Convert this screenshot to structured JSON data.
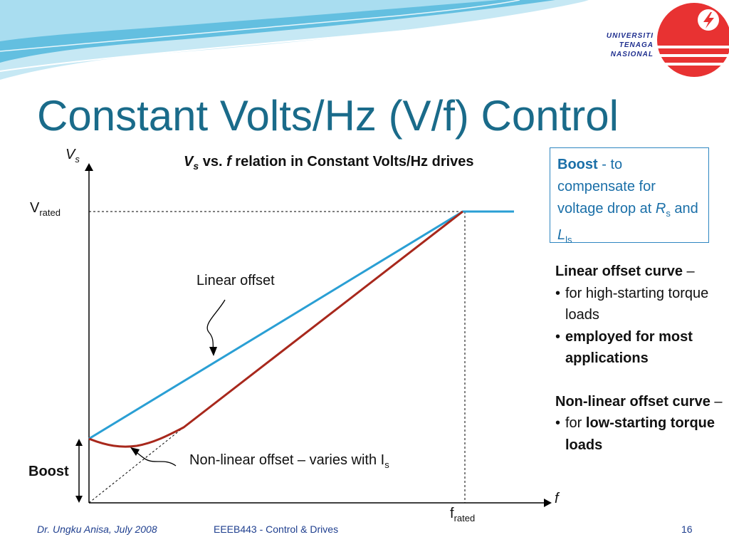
{
  "logo": {
    "lines": [
      "UNIVERSITI",
      "TENAGA",
      "NASIONAL"
    ],
    "icon": "lightning-bolt-icon",
    "circle_color": "#e83232"
  },
  "title": "Constant Volts/Hz (V/f) Control",
  "diagram": {
    "heading": {
      "var_v": "V",
      "var_v_sub": "s",
      "vs": " vs. ",
      "var_f": "f",
      "rest": " relation in Constant Volts/Hz drives"
    },
    "y_axis_label": "V",
    "y_axis_label_sub": "s",
    "x_axis_label": "f",
    "v_rated": "V",
    "v_rated_sub": "rated",
    "f_rated": "f",
    "f_rated_sub": "rated",
    "boost_label": "Boost",
    "linear_label": "Linear offset",
    "nonlinear_label": "Non-linear offset – varies with I",
    "nonlinear_label_sub": "s",
    "linear_color": "#2a9fd4",
    "nonlinear_color": "#a8281c"
  },
  "boost_box": {
    "title": "Boost",
    "dash": " - to compensate for voltage drop at ",
    "r": "R",
    "r_sub": "s",
    "and": " and ",
    "l": "L",
    "l_sub": "ls"
  },
  "notes": {
    "linear_heading": "Linear offset curve",
    "linear_heading_dash": " –",
    "linear_bullets": [
      "for high-starting torque loads",
      "employed for most applications"
    ],
    "nonlinear_heading": "Non-linear offset curve",
    "nonlinear_heading_dash": " –",
    "nonlinear_bullet_prefix": "for ",
    "nonlinear_bullet_bold": "low-starting torque loads"
  },
  "footer": {
    "author": "Dr. Ungku Anisa, July 2008",
    "course": "EEEB443 - Control & Drives",
    "page": "16"
  }
}
